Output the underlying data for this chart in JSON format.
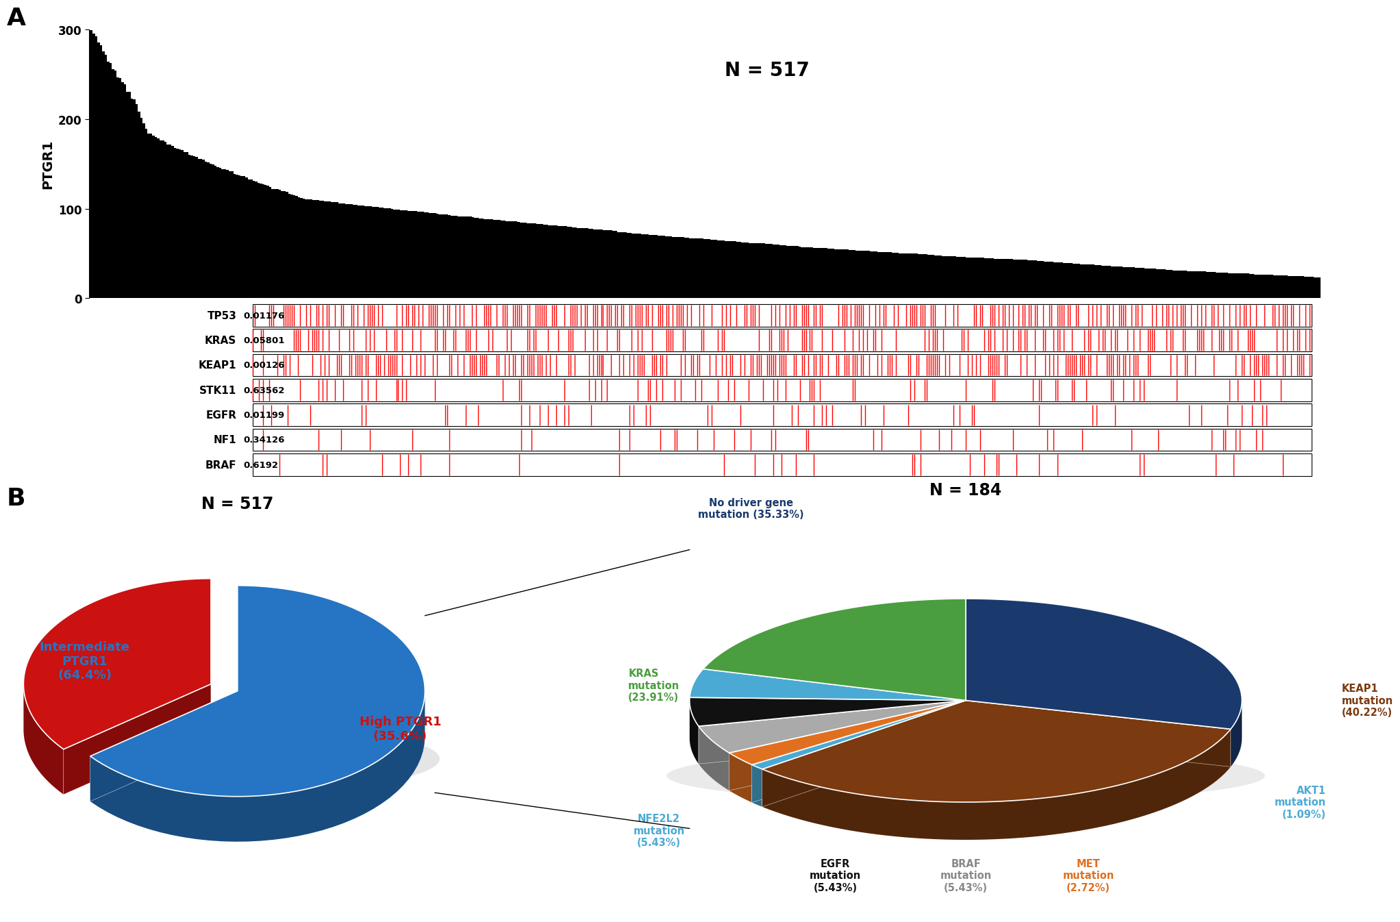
{
  "n_samples": 517,
  "ptgr1_max": 300,
  "ptgr1_ticks": [
    0,
    100,
    200,
    300
  ],
  "genes": [
    "TP53",
    "KRAS",
    "KEAP1",
    "STK11",
    "EGFR",
    "NF1",
    "BRAF"
  ],
  "pvalues": [
    "0.01176",
    "0.05801",
    "0.00126",
    "0.63562",
    "0.01199",
    "0.34126",
    "0.6192"
  ],
  "mutation_rates": [
    0.5,
    0.32,
    0.45,
    0.15,
    0.1,
    0.08,
    0.06
  ],
  "pie1_sizes": [
    64.4,
    35.6
  ],
  "pie1_colors": [
    "#2575c4",
    "#cc1111"
  ],
  "pie1_n": "N = 517",
  "pie2_sizes": [
    35.33,
    40.22,
    23.91,
    5.43,
    5.43,
    5.43,
    2.72,
    1.09
  ],
  "pie2_colors": [
    "#1a3a6e",
    "#7b3a10",
    "#4a9e3f",
    "#4baad4",
    "#111111",
    "#aaaaaa",
    "#e07020",
    "#4baad4"
  ],
  "pie2_label_colors": [
    "#1a3a6e",
    "#7b3a10",
    "#4a9e3f",
    "#4baad4",
    "#111111",
    "#888888",
    "#e07020",
    "#4baad4"
  ],
  "pie2_n": "N = 184",
  "background_color": "#ffffff"
}
